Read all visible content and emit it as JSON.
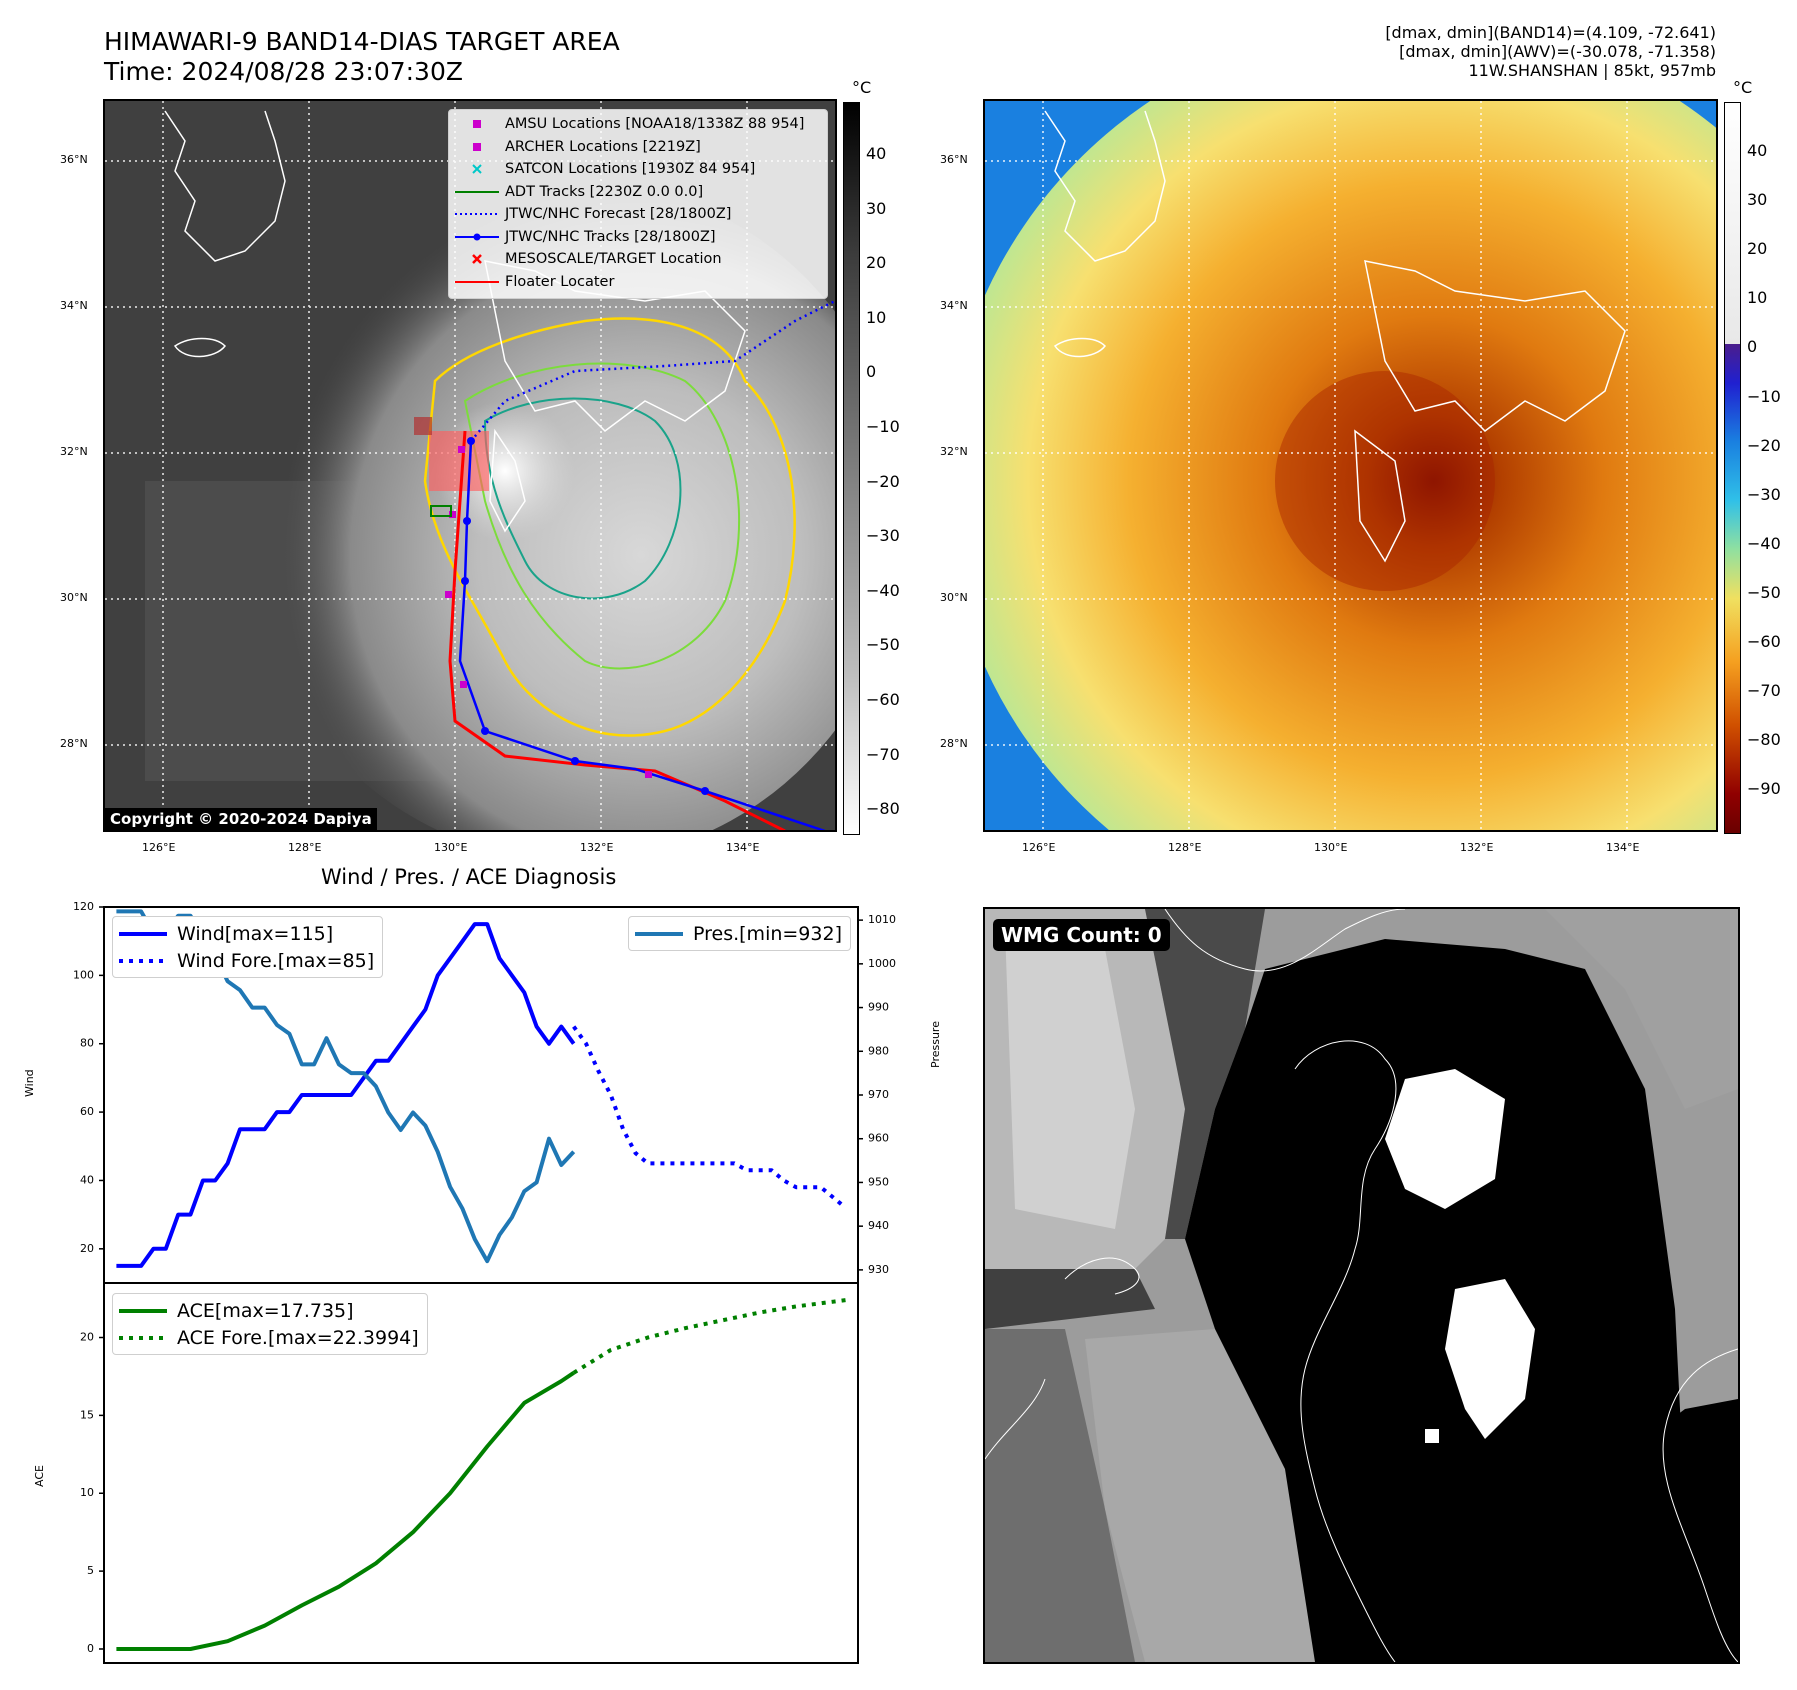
{
  "header": {
    "title_line1": "HIMAWARI-9 BAND14-DIAS TARGET AREA",
    "title_line2": "Time: 2024/08/28 23:07:30Z",
    "info_line1": "[dmax, dmin](BAND14)=(4.109, -72.641)",
    "info_line2": "[dmax, dmin](AWV)=(-30.078, -71.358)",
    "info_line3": "11W.SHANSHAN | 85kt, 957mb"
  },
  "map_axes": {
    "lat_ticks": [
      "36°N",
      "34°N",
      "32°N",
      "30°N",
      "28°N"
    ],
    "lon_ticks": [
      "126°E",
      "128°E",
      "130°E",
      "132°E",
      "134°E"
    ]
  },
  "colorbar_left": {
    "unit": "°C",
    "ticks": [
      "40",
      "30",
      "20",
      "10",
      "0",
      "−10",
      "−20",
      "−30",
      "−40",
      "−50",
      "−60",
      "−70",
      "−80"
    ]
  },
  "colorbar_right": {
    "unit": "°C",
    "ticks": [
      "40",
      "30",
      "20",
      "10",
      "0",
      "−10",
      "−20",
      "−30",
      "−40",
      "−50",
      "−60",
      "−70",
      "−80",
      "−90"
    ]
  },
  "legend_map": {
    "items": [
      {
        "label": "AMSU Locations [NOAA18/1338Z 88 954]",
        "color": "#cc00cc",
        "symbol": "square"
      },
      {
        "label": "ARCHER Locations [2219Z]",
        "color": "#cc00cc",
        "symbol": "square"
      },
      {
        "label": "SATCON Locations [1930Z 84 954]",
        "color": "#00c8c8",
        "symbol": "cross"
      },
      {
        "label": "ADT Tracks [2230Z 0.0 0.0]",
        "color": "#008000",
        "symbol": "line"
      },
      {
        "label": "JTWC/NHC Forecast [28/1800Z]",
        "color": "#0000ff",
        "symbol": "dotted"
      },
      {
        "label": "JTWC/NHC Tracks [28/1800Z]",
        "color": "#0000ff",
        "symbol": "line-dot"
      },
      {
        "label": "MESOSCALE/TARGET Location",
        "color": "#ff0000",
        "symbol": "x"
      },
      {
        "label": "Floater Locater",
        "color": "#ff0000",
        "symbol": "line"
      }
    ]
  },
  "copyright": "Copyright © 2020-2024 Dapiya",
  "wmg_label": "WMG Count: 0",
  "colors": {
    "wind": "#0000ff",
    "pressure": "#1f77b4",
    "ace": "#008000"
  },
  "chart_data": {
    "type": "line",
    "title": "Wind / Pres. / ACE Diagnosis",
    "panels": [
      {
        "ylabel": "Wind",
        "ylim": [
          10,
          120
        ],
        "yticks": [
          "20",
          "40",
          "60",
          "80",
          "100",
          "120"
        ],
        "y2label": "Pressure",
        "y2lim": [
          927,
          1013
        ],
        "y2ticks": [
          "930",
          "940",
          "950",
          "960",
          "970",
          "980",
          "990",
          "1000",
          "1010"
        ],
        "xlim": [
          -1,
          60
        ],
        "series": [
          {
            "name": "Wind[max=115]",
            "axis": "left",
            "style": "solid",
            "x": [
              0,
              1,
              2,
              3,
              4,
              5,
              6,
              7,
              8,
              9,
              10,
              11,
              12,
              13,
              14,
              15,
              16,
              17,
              18,
              19,
              20,
              21,
              22,
              23,
              24,
              25,
              26,
              27,
              28,
              29,
              30,
              31,
              32,
              33,
              34,
              35,
              36,
              37
            ],
            "values": [
              15,
              15,
              15,
              20,
              20,
              30,
              30,
              40,
              40,
              45,
              55,
              55,
              55,
              60,
              60,
              65,
              65,
              65,
              65,
              65,
              70,
              75,
              75,
              80,
              85,
              90,
              100,
              105,
              110,
              115,
              115,
              105,
              100,
              95,
              85,
              80,
              85,
              80
            ]
          },
          {
            "name": "Wind Fore.[max=85]",
            "axis": "left",
            "style": "dotted",
            "x": [
              37,
              38,
              39,
              40,
              41,
              42,
              43,
              44,
              45,
              46,
              47,
              48,
              49,
              50,
              51,
              52,
              53,
              54,
              55,
              56,
              57,
              58,
              59
            ],
            "values": [
              85,
              80,
              72,
              65,
              55,
              48,
              45,
              45,
              45,
              45,
              45,
              45,
              45,
              45,
              43,
              43,
              43,
              40,
              38,
              38,
              38,
              35,
              32
            ]
          },
          {
            "name": "Pres.[min=932]",
            "axis": "right",
            "style": "solid",
            "x": [
              0,
              1,
              2,
              3,
              4,
              5,
              6,
              7,
              8,
              9,
              10,
              11,
              12,
              13,
              14,
              15,
              16,
              17,
              18,
              19,
              20,
              21,
              22,
              23,
              24,
              25,
              26,
              27,
              28,
              29,
              30,
              31,
              32,
              33,
              34,
              35,
              36,
              37
            ],
            "values": [
              1012,
              1012,
              1012,
              1007,
              1007,
              1011,
              1011,
              1006,
              1002,
              996,
              994,
              990,
              990,
              986,
              984,
              977,
              977,
              983,
              977,
              975,
              975,
              972,
              966,
              962,
              966,
              963,
              957,
              949,
              944,
              937,
              932,
              938,
              942,
              948,
              950,
              960,
              954,
              957
            ]
          }
        ]
      },
      {
        "ylabel": "ACE",
        "ylim": [
          -0.9,
          23.5
        ],
        "yticks": [
          "0",
          "5",
          "10",
          "15",
          "20"
        ],
        "xlim": [
          -1,
          60
        ],
        "series": [
          {
            "name": "ACE[max=17.735]",
            "style": "solid",
            "x": [
              0,
              3,
              6,
              9,
              12,
              15,
              18,
              21,
              24,
              27,
              30,
              33,
              36,
              37
            ],
            "values": [
              0,
              0,
              0,
              0.5,
              1.5,
              2.8,
              4,
              5.5,
              7.5,
              10,
              13,
              15.8,
              17.2,
              17.735
            ]
          },
          {
            "name": "ACE Fore.[max=22.3994]",
            "style": "dotted",
            "x": [
              37,
              40,
              43,
              46,
              49,
              52,
              55,
              58,
              59
            ],
            "values": [
              17.735,
              19.2,
              20.0,
              20.6,
              21.1,
              21.6,
              22.0,
              22.3,
              22.3994
            ]
          }
        ]
      }
    ]
  }
}
